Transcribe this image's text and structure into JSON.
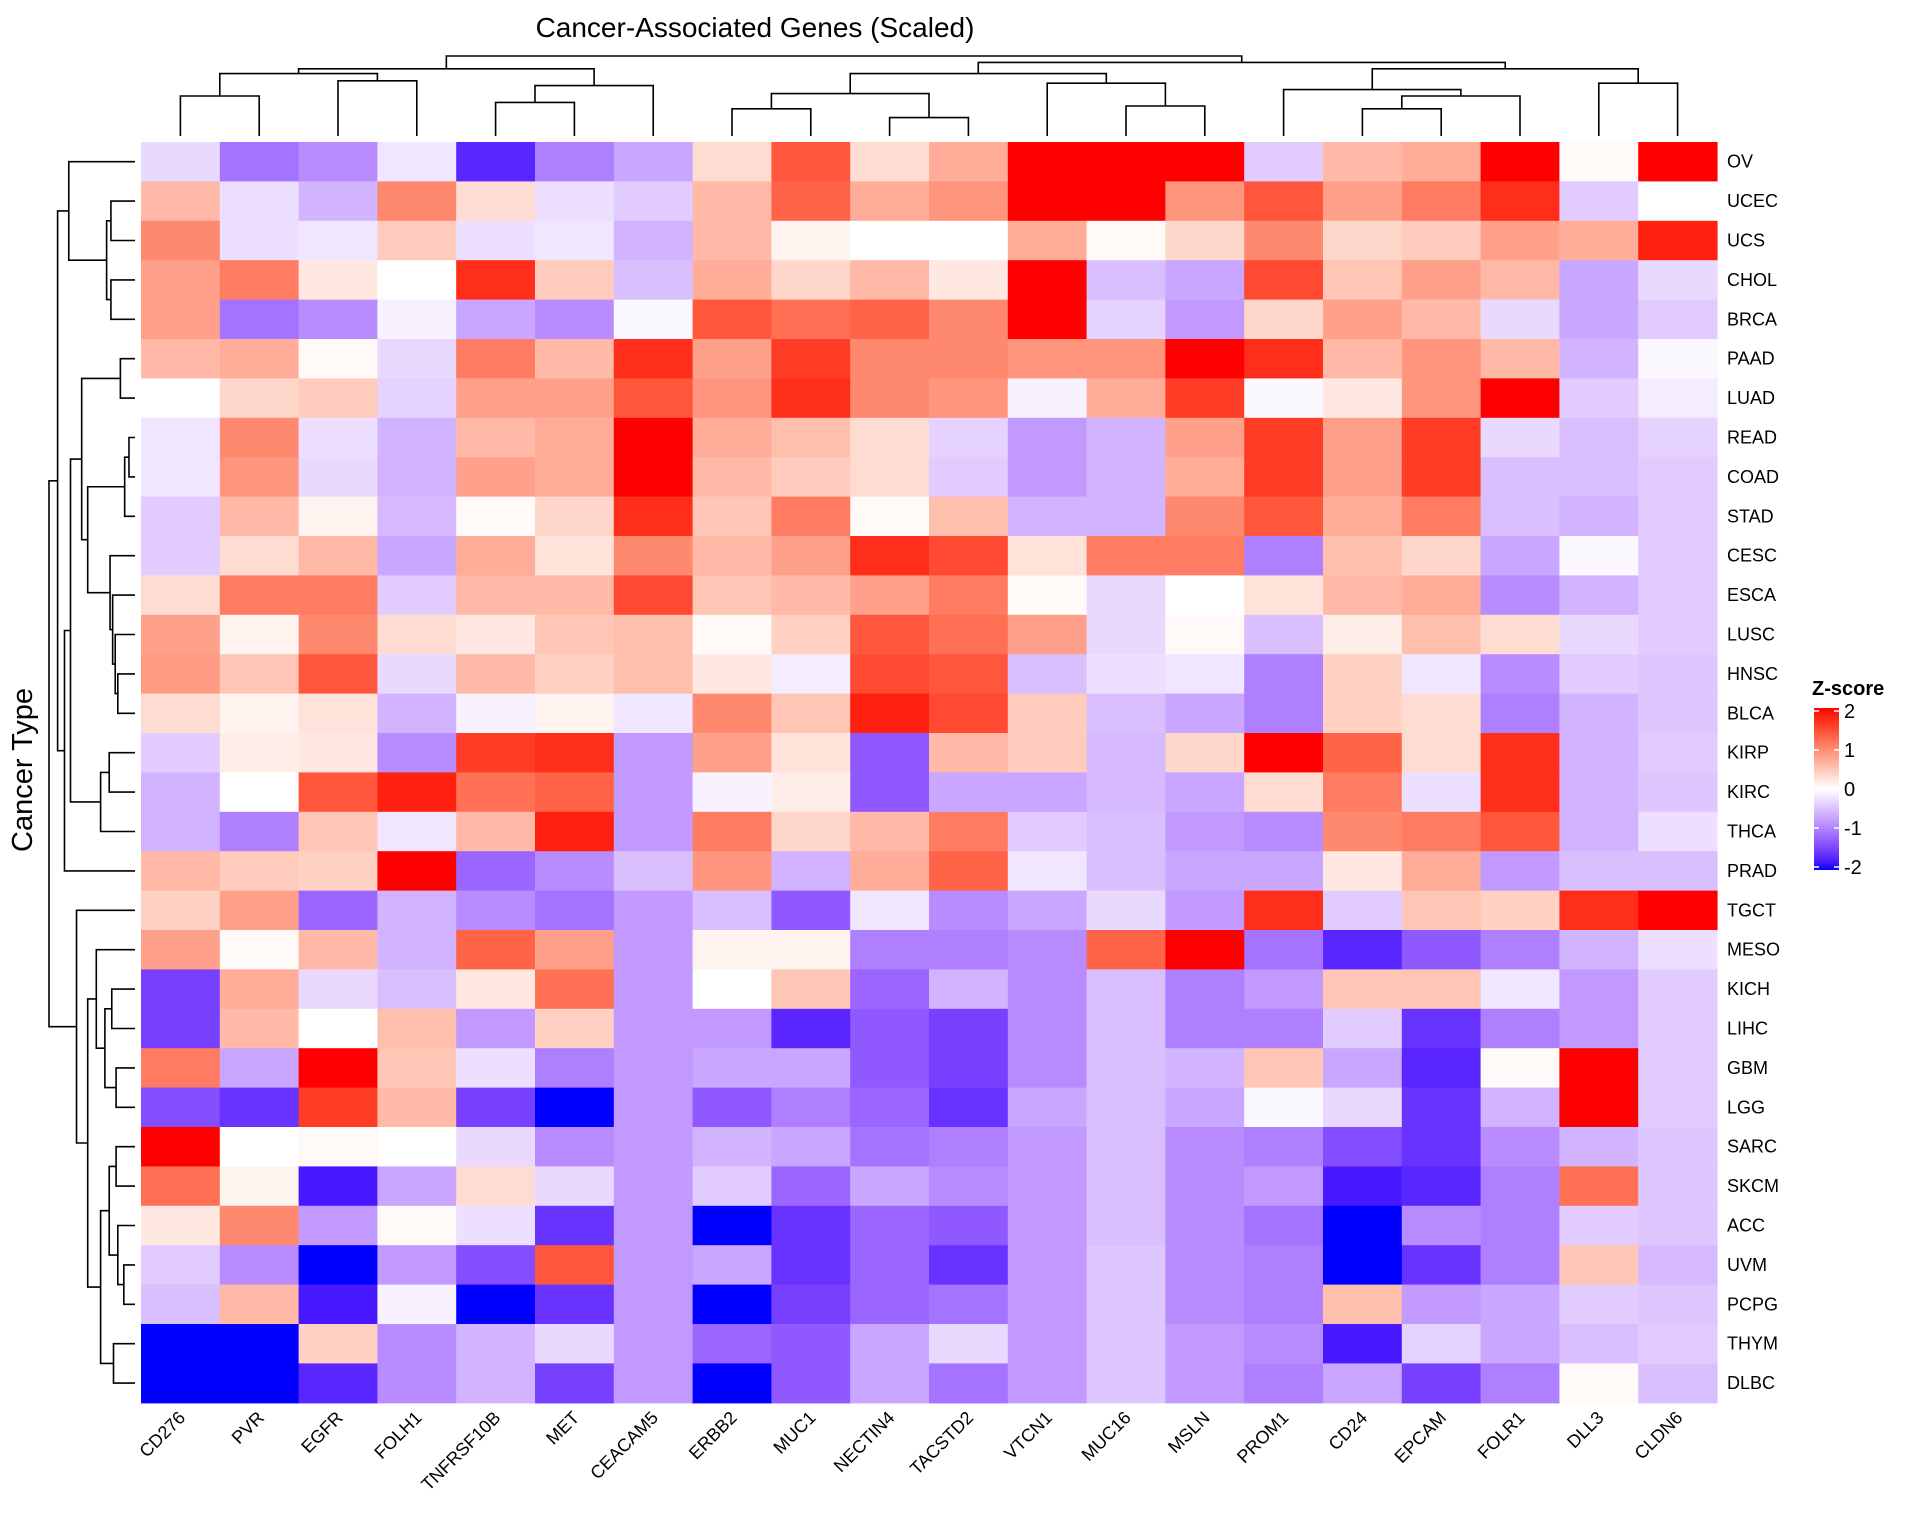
{
  "chart_data": {
    "type": "heatmap",
    "title": "Cancer-Associated Genes (Scaled)",
    "xlabel": "",
    "ylabel": "Cancer Type",
    "legend": {
      "title": "Z-score",
      "ticks": [
        2,
        1,
        0,
        -1,
        -2
      ],
      "placement": "right"
    },
    "color_scale": {
      "min": -2,
      "mid": 0,
      "max": 2,
      "low": "#0000FF",
      "midcolor": "#FFFFFF",
      "high": "#FF0000"
    },
    "dendrograms": {
      "rows": true,
      "columns": true
    },
    "columns": [
      "CD276",
      "PVR",
      "EGFR",
      "FOLH1",
      "TNFRSF10B",
      "MET",
      "CEACAM5",
      "ERBB2",
      "MUC1",
      "NECTIN4",
      "TACSTD2",
      "VTCN1",
      "MUC16",
      "MSLN",
      "PROM1",
      "CD24",
      "EPCAM",
      "FOLR1",
      "DLL3",
      "CLDN6"
    ],
    "rows": [
      "OV",
      "UCEC",
      "UCS",
      "CHOL",
      "BRCA",
      "PAAD",
      "LUAD",
      "READ",
      "COAD",
      "STAD",
      "CESC",
      "ESCA",
      "LUSC",
      "HNSC",
      "BLCA",
      "KIRP",
      "KIRC",
      "THCA",
      "PRAD",
      "TGCT",
      "MESO",
      "KICH",
      "LIHC",
      "GBM",
      "LGG",
      "SARC",
      "SKCM",
      "ACC",
      "UVM",
      "PCPG",
      "THYM",
      "DLBC"
    ],
    "values": [
      [
        -0.3,
        -1.1,
        -0.9,
        -0.2,
        -1.7,
        -1.0,
        -0.7,
        0.3,
        1.4,
        0.3,
        0.7,
        2.5,
        2.5,
        2.5,
        -0.4,
        0.6,
        0.7,
        2.2,
        0.05,
        2.2
      ],
      [
        0.6,
        -0.25,
        -0.6,
        1.0,
        0.3,
        -0.25,
        -0.4,
        0.6,
        1.3,
        0.7,
        0.9,
        2.5,
        2.5,
        0.9,
        1.4,
        0.8,
        1.1,
        1.7,
        -0.4,
        0
      ],
      [
        1.0,
        -0.25,
        -0.2,
        0.45,
        -0.25,
        -0.2,
        -0.6,
        0.6,
        0.1,
        0,
        0,
        0.7,
        0.05,
        0.35,
        1.0,
        0.35,
        0.45,
        0.8,
        0.7,
        1.8
      ],
      [
        0.8,
        1.1,
        0.2,
        0,
        1.7,
        0.45,
        -0.5,
        0.7,
        0.35,
        0.6,
        0.2,
        2.5,
        -0.5,
        -0.7,
        1.5,
        0.5,
        0.8,
        0.6,
        -0.7,
        -0.3
      ],
      [
        0.8,
        -1.1,
        -0.9,
        -0.1,
        -0.7,
        -0.9,
        -0.05,
        1.4,
        1.2,
        1.3,
        1.0,
        2.5,
        -0.35,
        -0.8,
        0.35,
        0.8,
        0.6,
        -0.3,
        -0.7,
        -0.4
      ],
      [
        0.6,
        0.7,
        0.05,
        -0.3,
        1.1,
        0.6,
        1.7,
        0.8,
        1.6,
        1.0,
        1.0,
        0.9,
        0.9,
        2.0,
        1.7,
        0.6,
        0.9,
        0.6,
        -0.6,
        -0.05
      ],
      [
        0,
        0.35,
        0.45,
        -0.35,
        0.8,
        0.8,
        1.4,
        0.9,
        1.7,
        1.0,
        0.9,
        -0.1,
        0.7,
        1.6,
        -0.05,
        0.2,
        0.9,
        2.0,
        -0.4,
        -0.15
      ],
      [
        -0.2,
        1.0,
        -0.25,
        -0.6,
        0.6,
        0.7,
        2.5,
        0.7,
        0.55,
        0.3,
        -0.35,
        -0.8,
        -0.6,
        0.8,
        1.6,
        0.8,
        1.6,
        -0.3,
        -0.5,
        -0.35
      ],
      [
        -0.2,
        0.9,
        -0.3,
        -0.6,
        0.8,
        0.7,
        2.5,
        0.6,
        0.45,
        0.3,
        -0.4,
        -0.8,
        -0.6,
        0.7,
        1.6,
        0.8,
        1.6,
        -0.5,
        -0.5,
        -0.4
      ],
      [
        -0.4,
        0.6,
        0.1,
        -0.55,
        0.05,
        0.35,
        1.7,
        0.5,
        1.1,
        0.05,
        0.55,
        -0.6,
        -0.6,
        1.0,
        1.4,
        0.7,
        1.1,
        -0.5,
        -0.6,
        -0.4
      ],
      [
        -0.4,
        0.3,
        0.6,
        -0.7,
        0.7,
        0.25,
        1.0,
        0.6,
        0.8,
        1.7,
        1.5,
        0.25,
        1.1,
        1.1,
        -1.0,
        0.55,
        0.35,
        -0.7,
        -0.05,
        -0.4
      ],
      [
        0.3,
        1.1,
        1.1,
        -0.4,
        0.6,
        0.6,
        1.5,
        0.5,
        0.6,
        0.8,
        1.1,
        0.05,
        -0.3,
        0,
        0.25,
        0.6,
        0.7,
        -0.9,
        -0.6,
        -0.4
      ],
      [
        0.8,
        0.1,
        1.0,
        0.3,
        0.2,
        0.5,
        0.55,
        0.05,
        0.4,
        1.4,
        1.2,
        0.8,
        -0.3,
        0.05,
        -0.5,
        0.15,
        0.55,
        0.3,
        -0.3,
        -0.4
      ],
      [
        0.85,
        0.5,
        1.4,
        -0.3,
        0.6,
        0.4,
        0.55,
        0.2,
        -0.15,
        1.5,
        1.4,
        -0.5,
        -0.25,
        -0.2,
        -1.0,
        0.4,
        -0.2,
        -0.9,
        -0.4,
        -0.45
      ],
      [
        0.3,
        0.1,
        0.25,
        -0.6,
        -0.1,
        0.1,
        -0.2,
        1.0,
        0.5,
        1.8,
        1.5,
        0.45,
        -0.5,
        -0.7,
        -1.0,
        0.4,
        0.3,
        -1.0,
        -0.6,
        -0.45
      ],
      [
        -0.4,
        0.15,
        0.2,
        -0.9,
        1.6,
        1.7,
        -0.8,
        0.8,
        0.25,
        -1.3,
        0.6,
        0.45,
        -0.55,
        0.35,
        2.0,
        1.3,
        0.3,
        1.7,
        -0.6,
        -0.4
      ],
      [
        -0.6,
        0,
        1.4,
        1.8,
        1.2,
        1.3,
        -0.8,
        -0.1,
        0.15,
        -1.3,
        -0.7,
        -0.7,
        -0.55,
        -0.7,
        0.3,
        1.1,
        -0.25,
        1.7,
        -0.6,
        -0.45
      ],
      [
        -0.6,
        -1.0,
        0.5,
        -0.2,
        0.6,
        1.8,
        -0.8,
        1.1,
        0.35,
        0.6,
        1.1,
        -0.4,
        -0.5,
        -0.8,
        -0.9,
        1.0,
        1.1,
        1.4,
        -0.6,
        -0.25
      ],
      [
        0.6,
        0.45,
        0.4,
        2.3,
        -1.2,
        -0.9,
        -0.5,
        0.9,
        -0.6,
        0.7,
        1.3,
        -0.2,
        -0.5,
        -0.7,
        -0.7,
        0.2,
        0.7,
        -0.8,
        -0.5,
        -0.5
      ],
      [
        0.4,
        0.8,
        -1.2,
        -0.6,
        -0.9,
        -1.1,
        -0.8,
        -0.5,
        -1.3,
        -0.2,
        -0.9,
        -0.7,
        -0.3,
        -0.8,
        1.7,
        -0.4,
        0.5,
        0.4,
        1.7,
        2.3
      ],
      [
        0.8,
        0.05,
        0.6,
        -0.6,
        1.3,
        0.8,
        -0.8,
        0.1,
        0.1,
        -1.0,
        -1.0,
        -0.9,
        1.3,
        2.5,
        -1.1,
        -1.7,
        -1.3,
        -1.0,
        -0.6,
        -0.25
      ],
      [
        -1.5,
        0.7,
        -0.3,
        -0.5,
        0.2,
        1.2,
        -0.8,
        0,
        0.5,
        -1.2,
        -0.6,
        -0.9,
        -0.5,
        -1.0,
        -0.8,
        0.5,
        0.5,
        -0.2,
        -0.8,
        -0.4
      ],
      [
        -1.5,
        0.6,
        0,
        0.55,
        -0.8,
        0.4,
        -0.8,
        -0.8,
        -1.7,
        -1.3,
        -1.5,
        -0.9,
        -0.5,
        -1.0,
        -1.0,
        -0.4,
        -1.6,
        -1.0,
        -0.8,
        -0.4
      ],
      [
        1.1,
        -0.7,
        2.3,
        0.5,
        -0.25,
        -1.0,
        -0.8,
        -0.7,
        -0.7,
        -1.3,
        -1.5,
        -0.9,
        -0.5,
        -0.6,
        0.5,
        -0.7,
        -1.7,
        0.05,
        2.5,
        -0.4
      ],
      [
        -1.4,
        -1.6,
        1.6,
        0.6,
        -1.5,
        -2.0,
        -0.8,
        -1.3,
        -1.0,
        -1.2,
        -1.6,
        -0.7,
        -0.5,
        -0.7,
        -0.05,
        -0.3,
        -1.6,
        -0.6,
        2.5,
        -0.4
      ],
      [
        2.5,
        0,
        0.05,
        0,
        -0.3,
        -0.9,
        -0.8,
        -0.6,
        -0.7,
        -1.1,
        -1.0,
        -0.8,
        -0.5,
        -0.9,
        -1.0,
        -1.4,
        -1.6,
        -0.9,
        -0.6,
        -0.45
      ],
      [
        1.2,
        0.1,
        -1.8,
        -0.7,
        0.3,
        -0.3,
        -0.8,
        -0.4,
        -1.2,
        -0.7,
        -0.9,
        -0.8,
        -0.5,
        -0.9,
        -0.8,
        -1.8,
        -1.7,
        -1.0,
        1.2,
        -0.45
      ],
      [
        0.2,
        1.0,
        -0.8,
        0.05,
        -0.25,
        -1.6,
        -0.8,
        -2.1,
        -1.6,
        -1.2,
        -1.3,
        -0.8,
        -0.5,
        -0.9,
        -1.1,
        -2.3,
        -0.9,
        -1.0,
        -0.4,
        -0.45
      ],
      [
        -0.4,
        -0.9,
        -2.2,
        -0.8,
        -1.4,
        1.4,
        -0.8,
        -0.7,
        -1.6,
        -1.2,
        -1.6,
        -0.8,
        -0.45,
        -0.9,
        -1.0,
        -2.3,
        -1.6,
        -1.0,
        0.5,
        -0.55
      ],
      [
        -0.5,
        0.6,
        -1.8,
        -0.1,
        -2.2,
        -1.6,
        -0.8,
        -2.1,
        -1.5,
        -1.2,
        -1.1,
        -0.8,
        -0.45,
        -0.9,
        -1.0,
        0.55,
        -0.8,
        -0.7,
        -0.4,
        -0.45
      ],
      [
        -2.3,
        -2.3,
        0.4,
        -0.9,
        -0.6,
        -0.3,
        -0.8,
        -1.2,
        -1.3,
        -0.7,
        -0.3,
        -0.8,
        -0.45,
        -0.8,
        -0.9,
        -1.8,
        -0.35,
        -0.7,
        -0.5,
        -0.4
      ],
      [
        -2.3,
        -2.3,
        -1.7,
        -0.9,
        -0.6,
        -1.5,
        -0.8,
        -2.2,
        -1.3,
        -0.7,
        -1.1,
        -0.8,
        -0.45,
        -0.8,
        -1.0,
        -0.7,
        -1.5,
        -1.0,
        0.05,
        -0.5
      ]
    ]
  }
}
